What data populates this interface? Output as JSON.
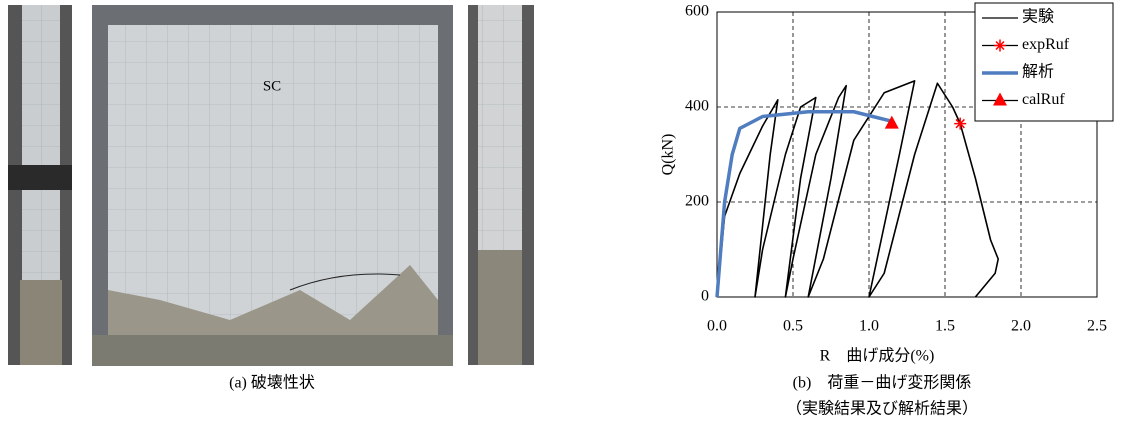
{
  "photos": {
    "label": "SC",
    "caption": "(a) 破壊性状"
  },
  "caption": {
    "line1": "(b)　荷重－曲げ変形関係",
    "line2": "（実験結果及び解析結果）"
  },
  "chart_data": {
    "type": "line",
    "xlabel": "R　曲げ成分(%)",
    "ylabel": "Q(kN)",
    "xlim": [
      0,
      2.5
    ],
    "ylim": [
      0,
      600
    ],
    "xticks": [
      {
        "value": 0,
        "label": "0.0"
      },
      0.5,
      {
        "value": 1,
        "label": "1.0"
      },
      1.5,
      {
        "value": 2,
        "label": "2.0"
      },
      2.5
    ],
    "yticks": [
      0,
      200,
      400,
      600
    ],
    "grid": true,
    "legend": "upper right",
    "series": [
      {
        "name": "実験",
        "color": "#000000",
        "marker": "none",
        "x": [
          0,
          0.05,
          0.15,
          0.3,
          0.4,
          0.35,
          0.25,
          0.3,
          0.45,
          0.55,
          0.65,
          0.55,
          0.45,
          0.5,
          0.65,
          0.8,
          0.85,
          0.75,
          0.6,
          0.7,
          0.9,
          1.1,
          1.3,
          1.2,
          1.0,
          1.1,
          1.3,
          1.45,
          1.55,
          1.6,
          1.7,
          1.8,
          1.85,
          1.83,
          1.7
        ],
        "values": [
          0,
          170,
          260,
          360,
          415,
          300,
          0,
          100,
          300,
          400,
          420,
          250,
          0,
          80,
          300,
          420,
          445,
          250,
          0,
          80,
          330,
          430,
          455,
          300,
          0,
          50,
          300,
          450,
          400,
          365,
          250,
          120,
          80,
          50,
          0
        ]
      },
      {
        "name": "expRuf",
        "color": "#ff0000",
        "marker": "star",
        "x": [
          1.6
        ],
        "values": [
          365
        ]
      },
      {
        "name": "解析",
        "color": "#4f7dbf",
        "marker": "none",
        "x": [
          0,
          0.05,
          0.1,
          0.15,
          0.3,
          0.6,
          0.9,
          1.15
        ],
        "values": [
          0,
          200,
          300,
          355,
          380,
          390,
          390,
          370
        ]
      },
      {
        "name": "calRuf",
        "color": "#ff0000",
        "marker": "triangle",
        "x": [
          1.15
        ],
        "values": [
          365
        ]
      }
    ]
  }
}
